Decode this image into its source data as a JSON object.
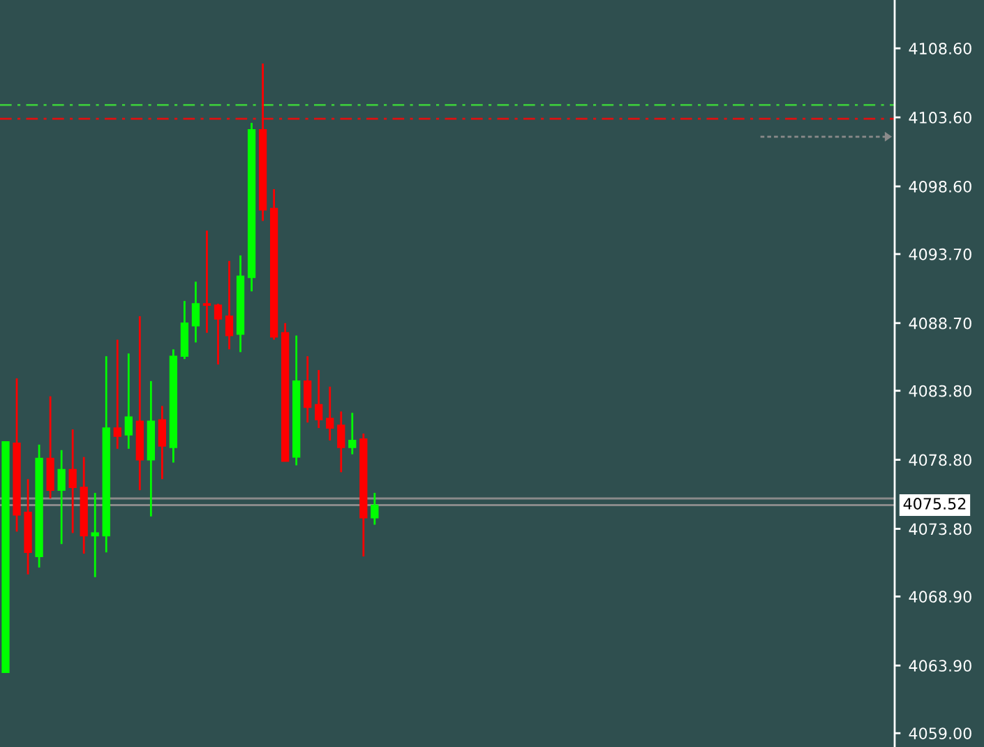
{
  "chart_data": {
    "type": "candlestick",
    "categories": [
      null,
      null,
      null,
      null,
      null,
      null,
      null,
      null,
      null,
      null,
      null,
      null,
      null,
      null,
      null,
      null,
      null,
      null,
      null,
      null,
      null,
      null,
      null,
      null,
      null,
      null,
      null,
      null,
      null,
      null,
      null,
      null,
      null,
      null,
      null,
      null,
      null,
      null,
      null,
      null,
      null,
      null,
      null,
      null,
      null,
      null,
      null,
      null,
      null,
      null,
      null,
      null,
      null,
      null,
      null,
      null,
      null,
      null,
      null,
      null,
      null,
      null,
      null,
      null,
      null,
      null,
      null,
      null,
      null,
      null,
      null,
      null,
      null,
      null,
      null,
      null,
      null,
      null,
      null,
      null
    ],
    "ohlc": [
      [
        4063.4,
        4080.1,
        4063.4,
        4080.1
      ],
      [
        4080.0,
        4084.7,
        4073.6,
        4074.8
      ],
      [
        4075.0,
        4077.4,
        4070.5,
        4072.1
      ],
      [
        4071.8,
        4079.9,
        4071.0,
        4078.9
      ],
      [
        4078.9,
        4083.4,
        4076.0,
        4076.6
      ],
      [
        4076.6,
        4079.5,
        4072.7,
        4078.1
      ],
      [
        4078.1,
        4081.0,
        4073.5,
        4076.8
      ],
      [
        4076.8,
        4079.0,
        4072.0,
        4073.3
      ],
      [
        4073.3,
        4076.4,
        4070.3,
        4073.5
      ],
      [
        4073.3,
        4086.3,
        4072.1,
        4081.1
      ],
      [
        4081.1,
        4087.5,
        4079.6,
        4080.5
      ],
      [
        4080.6,
        4086.5,
        4079.6,
        4081.9
      ],
      [
        4081.6,
        4089.2,
        4076.6,
        4078.8
      ],
      [
        4078.8,
        4084.5,
        4074.7,
        4081.6
      ],
      [
        4081.7,
        4082.7,
        4077.4,
        4079.8
      ],
      [
        4079.7,
        4086.8,
        4078.6,
        4086.3
      ],
      [
        4086.3,
        4090.3,
        4086.1,
        4088.7
      ],
      [
        4088.5,
        4091.7,
        4087.3,
        4090.1
      ],
      [
        4090.1,
        4095.4,
        4088.0,
        4090.0
      ],
      [
        4090.0,
        4090.1,
        4085.7,
        4089.0
      ],
      [
        4089.2,
        4093.2,
        4086.8,
        4087.8
      ],
      [
        4087.9,
        4093.6,
        4086.6,
        4092.1
      ],
      [
        4092.0,
        4103.2,
        4091.0,
        4102.7
      ],
      [
        4102.7,
        4107.5,
        4096.1,
        4096.9
      ],
      [
        4097.0,
        4098.4,
        4087.5,
        4087.7
      ],
      [
        4088.0,
        4088.7,
        4078.7,
        4078.7
      ],
      [
        4079.0,
        4087.8,
        4078.4,
        4084.5
      ],
      [
        4084.5,
        4086.3,
        4081.5,
        4082.6
      ],
      [
        4082.8,
        4085.3,
        4081.1,
        4081.7
      ],
      [
        4081.8,
        4084.1,
        4080.2,
        4081.1
      ],
      [
        4081.3,
        4082.3,
        4077.9,
        4079.7
      ],
      [
        4079.7,
        4082.2,
        4079.2,
        4080.2
      ],
      [
        4080.3,
        4080.7,
        4071.8,
        4074.6
      ],
      [
        4074.6,
        4076.4,
        4074.1,
        4075.52
      ],
      null,
      null,
      null,
      null,
      null,
      null,
      null,
      null,
      null,
      null,
      null,
      null,
      null,
      null,
      null,
      null,
      null,
      null,
      null,
      null,
      null,
      null,
      null,
      null,
      null,
      null,
      null,
      null,
      null,
      null,
      null,
      null,
      null,
      null,
      null,
      null,
      null,
      null,
      null,
      null,
      null,
      null,
      null,
      null,
      null,
      null
    ],
    "colors": [
      "#00ff00",
      "#ff0000",
      "#ff0000",
      "#00ff00",
      "#ff0000",
      "#00ff00",
      "#ff0000",
      "#ff0000",
      "#00ff00",
      "#00ff00",
      "#ff0000",
      "#00ff00",
      "#ff0000",
      "#00ff00",
      "#ff0000",
      "#00ff00",
      "#00ff00",
      "#00ff00",
      "#ff0000",
      "#ff0000",
      "#ff0000",
      "#00ff00",
      "#00ff00",
      "#ff0000",
      "#ff0000",
      "#ff0000",
      "#00ff00",
      "#ff0000",
      "#ff0000",
      "#ff0000",
      "#ff0000",
      "#00ff00",
      "#ff0000",
      "#00ff00",
      null,
      null,
      null,
      null,
      null,
      null,
      null,
      null,
      null,
      null,
      null,
      null,
      null,
      null,
      null,
      null,
      null,
      null,
      null,
      null,
      null,
      null,
      null,
      null,
      null,
      null,
      null,
      null,
      null,
      null,
      null,
      null,
      null,
      null,
      null,
      null,
      null,
      null,
      null,
      null,
      null,
      null,
      null,
      null,
      null,
      null
    ],
    "ylim": [
      4058.0,
      4112.1
    ],
    "yticks": [
      {
        "value": 4059.0,
        "label": "4059.00"
      },
      {
        "value": 4063.9,
        "label": "4063.90"
      },
      {
        "value": 4068.9,
        "label": "4068.90"
      },
      {
        "value": 4073.8,
        "label": "4073.80"
      },
      {
        "value": 4078.8,
        "label": "4078.80"
      },
      {
        "value": 4083.8,
        "label": "4083.80"
      },
      {
        "value": 4088.7,
        "label": "4088.70"
      },
      {
        "value": 4093.7,
        "label": "4093.70"
      },
      {
        "value": 4098.6,
        "label": "4098.60"
      },
      {
        "value": 4103.6,
        "label": "4103.60"
      },
      {
        "value": 4108.6,
        "label": "4108.60"
      }
    ],
    "tick_labels": "y",
    "ref_lines": [
      {
        "axis": "y",
        "value": 4104.5,
        "color": "#3cc83c",
        "line_style": "dashed"
      },
      {
        "axis": "y",
        "value": 4103.5,
        "color": "#e01010",
        "line_style": "dashed"
      },
      {
        "axis": "y",
        "value": 4102.2,
        "color": "#8a8a8a",
        "line_style": "dotted"
      },
      {
        "axis": "y",
        "value": 4076.0,
        "color": "#8a8a8a",
        "line_style": "solid"
      },
      {
        "axis": "y",
        "value": 4075.52,
        "label": "4075.52",
        "color": "#8a8a8a",
        "line_style": "solid"
      }
    ]
  }
}
